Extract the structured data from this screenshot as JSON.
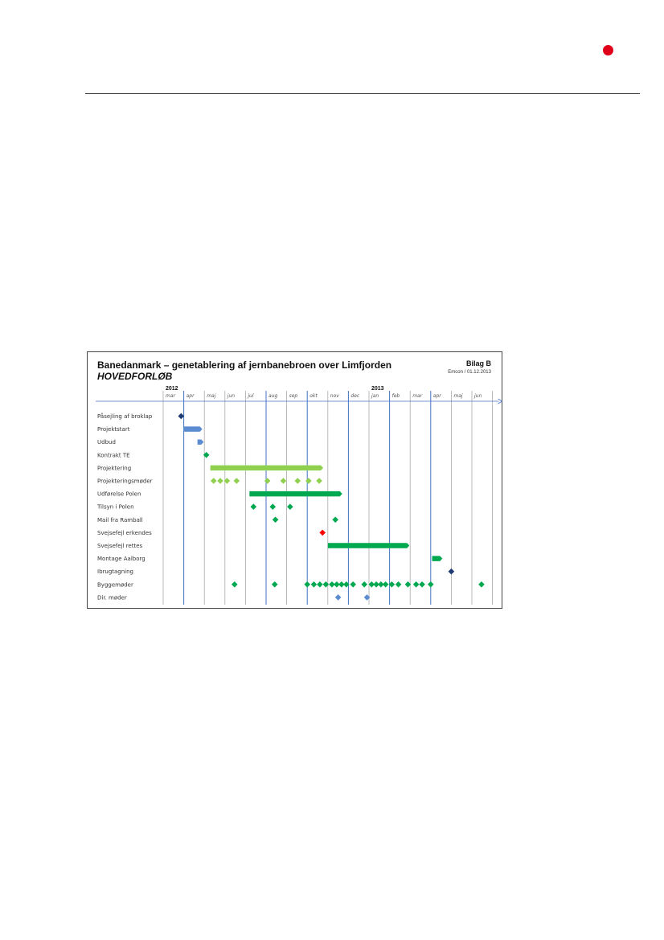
{
  "page": {
    "accent_color": "#e0001a"
  },
  "figure": {
    "title": "Banedanmark – genetablering af jernbanebroen over Limfjorden",
    "subtitle": "HOVEDFORLØB",
    "bilag": "Bilag B",
    "author_date": "Emcon / 01.12.2013"
  },
  "chart_data": {
    "type": "gantt",
    "title": "Banedanmark – genetablering af jernbanebroen over Limfjorden",
    "subtitle": "HOVEDFORLØB",
    "years": [
      {
        "label": "2012",
        "month_index": 0
      },
      {
        "label": "2013",
        "month_index": 10
      }
    ],
    "months": [
      "mar",
      "apr",
      "maj",
      "jun",
      "jul",
      "aug",
      "sep",
      "okt",
      "nov",
      "dec",
      "jan",
      "feb",
      "mar",
      "apr",
      "maj",
      "jun"
    ],
    "axis": {
      "unit": "month",
      "start": "2012-03",
      "end": "2013-06"
    },
    "colors": {
      "dark_blue": "#1f3b73",
      "blue": "#5b8bd0",
      "light_green": "#8fd14f",
      "green": "#00a84f",
      "red": "#ff0000",
      "grid": "#aaaaaa",
      "grid_blue": "#4472c4"
    },
    "rows": [
      {
        "label": "Påsejling af broklap",
        "items": [
          {
            "kind": "milestone",
            "date": "2012-03-28",
            "color": "dark_blue"
          }
        ]
      },
      {
        "label": "Projektstart",
        "items": [
          {
            "kind": "bar",
            "start": "2012-04-01",
            "end": "2012-04-28",
            "color": "blue"
          }
        ]
      },
      {
        "label": "Udbud",
        "items": [
          {
            "kind": "bar",
            "start": "2012-04-21",
            "end": "2012-04-30",
            "color": "blue"
          }
        ]
      },
      {
        "label": "Kontrakt TE",
        "items": [
          {
            "kind": "milestone",
            "date": "2012-05-04",
            "color": "green"
          }
        ]
      },
      {
        "label": "Projektering",
        "items": [
          {
            "kind": "bar",
            "start": "2012-05-10",
            "end": "2012-10-25",
            "color": "light_green"
          }
        ]
      },
      {
        "label": "Projekteringsmøder",
        "items": [
          {
            "kind": "milestone",
            "date": "2012-05-15",
            "color": "light_green"
          },
          {
            "kind": "milestone",
            "date": "2012-05-25",
            "color": "light_green"
          },
          {
            "kind": "milestone",
            "date": "2012-06-04",
            "color": "light_green"
          },
          {
            "kind": "milestone",
            "date": "2012-06-18",
            "color": "light_green"
          },
          {
            "kind": "milestone",
            "date": "2012-08-03",
            "color": "light_green"
          },
          {
            "kind": "milestone",
            "date": "2012-08-27",
            "color": "light_green"
          },
          {
            "kind": "milestone",
            "date": "2012-09-17",
            "color": "light_green"
          },
          {
            "kind": "milestone",
            "date": "2012-10-03",
            "color": "light_green"
          },
          {
            "kind": "milestone",
            "date": "2012-10-19",
            "color": "light_green"
          }
        ]
      },
      {
        "label": "Udførelse Polen",
        "items": [
          {
            "kind": "bar",
            "start": "2012-07-07",
            "end": "2012-11-22",
            "color": "green"
          }
        ]
      },
      {
        "label": "Tilsyn i Polen",
        "items": [
          {
            "kind": "milestone",
            "date": "2012-07-13",
            "color": "green"
          },
          {
            "kind": "milestone",
            "date": "2012-08-11",
            "color": "green"
          },
          {
            "kind": "milestone",
            "date": "2012-09-06",
            "color": "green"
          }
        ]
      },
      {
        "label": "Mail fra Ramball",
        "items": [
          {
            "kind": "milestone",
            "date": "2012-08-15",
            "color": "green"
          },
          {
            "kind": "milestone",
            "date": "2012-11-12",
            "color": "green"
          }
        ]
      },
      {
        "label": "Svejsefejl erkendes",
        "items": [
          {
            "kind": "milestone",
            "date": "2012-10-24",
            "color": "red"
          }
        ]
      },
      {
        "label": "Svejsefejl rettes",
        "items": [
          {
            "kind": "bar",
            "start": "2012-11-01",
            "end": "2013-02-28",
            "color": "green"
          }
        ]
      },
      {
        "label": "Montage Aalborg",
        "items": [
          {
            "kind": "bar",
            "start": "2013-04-03",
            "end": "2013-04-18",
            "color": "green"
          }
        ]
      },
      {
        "label": "Ibrugtagning",
        "items": [
          {
            "kind": "milestone",
            "date": "2013-05-01",
            "color": "dark_blue"
          }
        ]
      },
      {
        "label": "Byggemøder",
        "items": [
          {
            "kind": "milestone",
            "date": "2012-06-15",
            "color": "green"
          },
          {
            "kind": "milestone",
            "date": "2012-08-14",
            "color": "green"
          },
          {
            "kind": "milestone",
            "date": "2012-10-01",
            "color": "green"
          },
          {
            "kind": "milestone",
            "date": "2012-10-11",
            "color": "green"
          },
          {
            "kind": "milestone",
            "date": "2012-10-20",
            "color": "green"
          },
          {
            "kind": "milestone",
            "date": "2012-10-29",
            "color": "green"
          },
          {
            "kind": "milestone",
            "date": "2012-11-07",
            "color": "green"
          },
          {
            "kind": "milestone",
            "date": "2012-11-14",
            "color": "green"
          },
          {
            "kind": "milestone",
            "date": "2012-11-21",
            "color": "green"
          },
          {
            "kind": "milestone",
            "date": "2012-11-28",
            "color": "green"
          },
          {
            "kind": "milestone",
            "date": "2012-12-08",
            "color": "green"
          },
          {
            "kind": "milestone",
            "date": "2012-12-25",
            "color": "green"
          },
          {
            "kind": "milestone",
            "date": "2013-01-05",
            "color": "green"
          },
          {
            "kind": "milestone",
            "date": "2013-01-12",
            "color": "green"
          },
          {
            "kind": "milestone",
            "date": "2013-01-19",
            "color": "green"
          },
          {
            "kind": "milestone",
            "date": "2013-01-26",
            "color": "green"
          },
          {
            "kind": "milestone",
            "date": "2013-02-04",
            "color": "green"
          },
          {
            "kind": "milestone",
            "date": "2013-02-13",
            "color": "green"
          },
          {
            "kind": "milestone",
            "date": "2013-02-26",
            "color": "green"
          },
          {
            "kind": "milestone",
            "date": "2013-03-10",
            "color": "green"
          },
          {
            "kind": "milestone",
            "date": "2013-03-19",
            "color": "green"
          },
          {
            "kind": "milestone",
            "date": "2013-04-01",
            "color": "green"
          },
          {
            "kind": "milestone",
            "date": "2013-06-15",
            "color": "green"
          }
        ]
      },
      {
        "label": "Dir. møder",
        "items": [
          {
            "kind": "milestone",
            "date": "2012-11-16",
            "color": "blue"
          },
          {
            "kind": "milestone",
            "date": "2012-12-29",
            "color": "blue"
          }
        ]
      }
    ]
  }
}
